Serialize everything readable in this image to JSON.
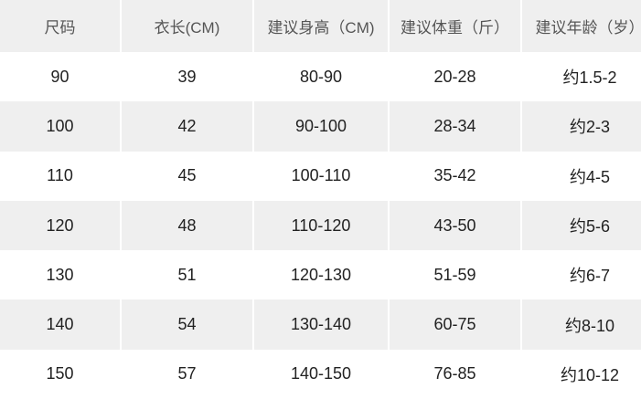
{
  "headers": [
    "尺码",
    "衣长(CM)",
    "建议身高（CM)",
    "建议体重（斤）",
    "建议年龄（岁）"
  ],
  "rows": [
    [
      "90",
      "39",
      "80-90",
      "20-28",
      "约1.5-2"
    ],
    [
      "100",
      "42",
      "90-100",
      "28-34",
      "约2-3"
    ],
    [
      "110",
      "45",
      "100-110",
      "35-42",
      "约4-5"
    ],
    [
      "120",
      "48",
      "110-120",
      "43-50",
      "约5-6"
    ],
    [
      "130",
      "51",
      "120-130",
      "51-59",
      "约6-7"
    ],
    [
      "140",
      "54",
      "130-140",
      "60-75",
      "约8-10"
    ],
    [
      "150",
      "57",
      "140-150",
      "76-85",
      "约10-12"
    ]
  ],
  "colors": {
    "shaded_row": "#efefef",
    "header_text": "#555555",
    "body_text": "#222222"
  }
}
